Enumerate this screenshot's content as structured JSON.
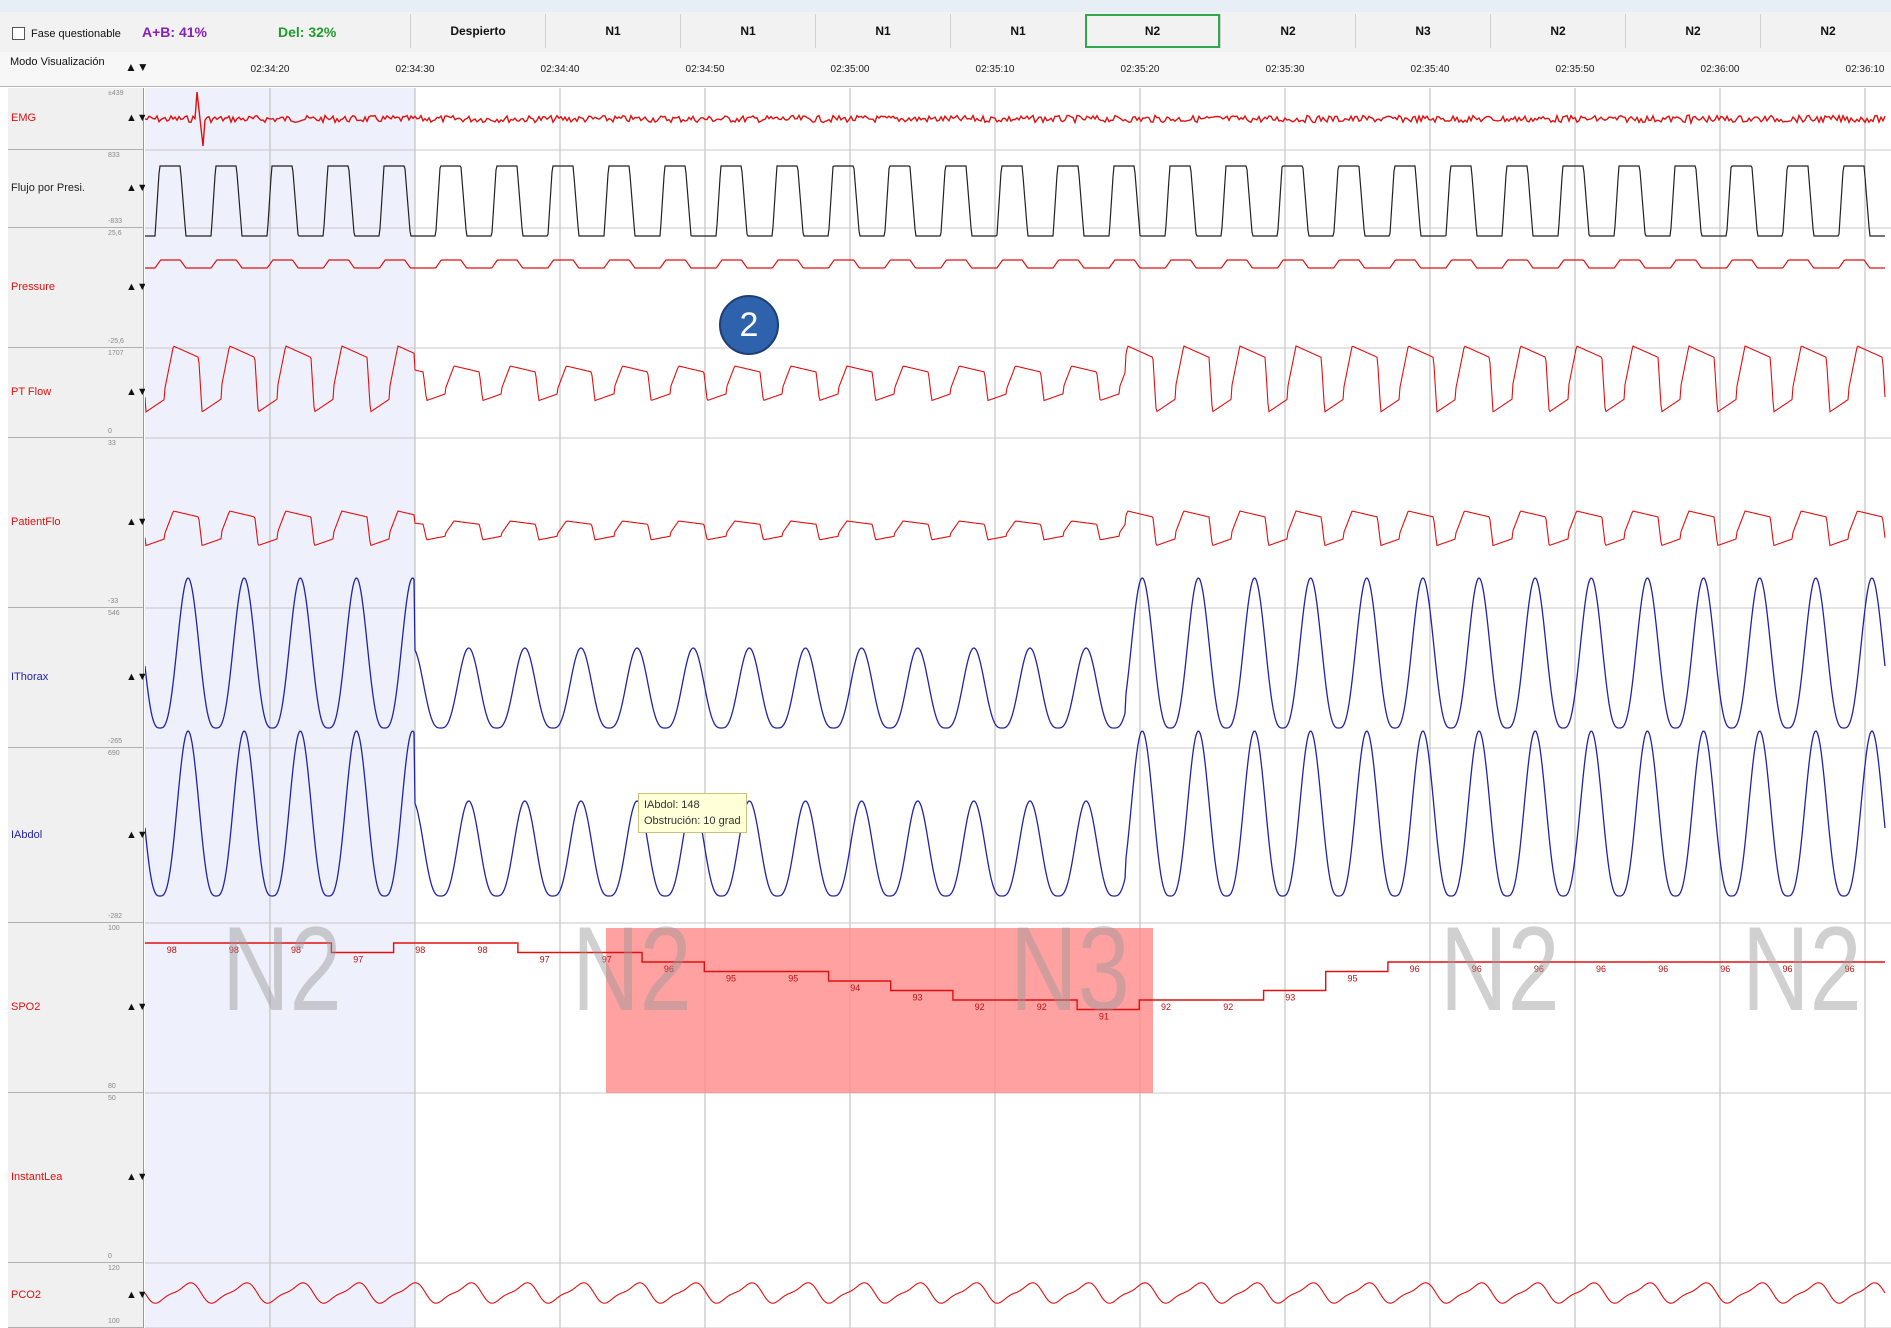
{
  "header": {
    "checkbox_label": "Fase questionable",
    "ab_stat": "A+B: 41%",
    "del_stat": "Del: 32%",
    "mode_label": "Modo Visualización",
    "mode_arrows": "▲▼",
    "epochs": [
      "Despierto",
      "N1",
      "N1",
      "N1",
      "N1",
      "N2",
      "N2",
      "N3",
      "N2",
      "N2",
      "N2"
    ],
    "selected_epoch_index": 5,
    "time_ticks": [
      "02:34:20",
      "02:34:30",
      "02:34:40",
      "02:34:50",
      "02:35:00",
      "02:35:10",
      "02:35:20",
      "02:35:30",
      "02:35:40",
      "02:35:50",
      "02:36:00",
      "02:36:10"
    ]
  },
  "channels": [
    {
      "name": "EMG",
      "color": "#e01010",
      "scale_top": "±439",
      "scale_bottom": ""
    },
    {
      "name": "Flujo por Presi.",
      "color": "#222222",
      "scale_top": "833",
      "scale_bottom": "-833"
    },
    {
      "name": "Pressure",
      "color": "#e01010",
      "scale_top": "25,6",
      "scale_bottom": "-25,6"
    },
    {
      "name": "PT Flow",
      "color": "#e01010",
      "scale_top": "1707",
      "scale_bottom": "0"
    },
    {
      "name": "PatientFlo",
      "color": "#e01010",
      "scale_top": "33",
      "scale_bottom": "-33"
    },
    {
      "name": "IThorax",
      "color": "#2323a8",
      "scale_top": "546",
      "scale_bottom": "-265"
    },
    {
      "name": "IAbdol",
      "color": "#2323a8",
      "scale_top": "690",
      "scale_bottom": "-282"
    },
    {
      "name": "SPO2",
      "color": "#e01010",
      "scale_top": "100",
      "scale_bottom": "80"
    },
    {
      "name": "InstantLea",
      "color": "#e01010",
      "scale_top": "50",
      "scale_bottom": "0"
    },
    {
      "name": "PCO2",
      "color": "#e01010",
      "scale_top": "120",
      "scale_bottom": "100"
    }
  ],
  "channel_arrows": "▲▼",
  "tooltip": {
    "line1": "IAbdol: 148",
    "line2": "Obstrución: 10 grad"
  },
  "badge": "2",
  "stage_labels": [
    "N2",
    "N2",
    "N3",
    "N2",
    "N2"
  ],
  "spo2_values": [
    "98",
    "98",
    "98",
    "97",
    "98",
    "98",
    "97",
    "97",
    "96",
    "95",
    "95",
    "94",
    "93",
    "92",
    "92",
    "91",
    "92",
    "92",
    "93",
    "95",
    "96",
    "96",
    "96",
    "96",
    "96",
    "96",
    "96",
    "96"
  ],
  "colors": {
    "highlight": "#ff8a8a",
    "light_band": "#eef0fb",
    "grid": "#c8c8c8",
    "epoch_selected": "#2fa84f",
    "badge": "#2e62ad"
  }
}
